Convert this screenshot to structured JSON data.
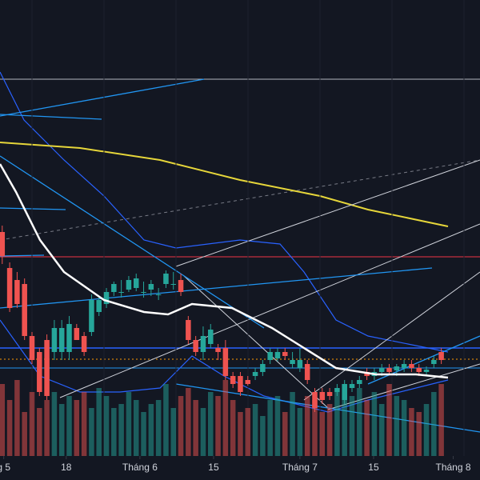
{
  "chart_data": {
    "type": "candlestick",
    "x": [
      0,
      1,
      2,
      3,
      4,
      5,
      6,
      7,
      8,
      9,
      10,
      11,
      12,
      13,
      14,
      15,
      16,
      17,
      18,
      19,
      20,
      21,
      22,
      23,
      24,
      25,
      26,
      27,
      28,
      29,
      30,
      31,
      32,
      33,
      34,
      35,
      36,
      37,
      38,
      39,
      40,
      41,
      42,
      43,
      44,
      45,
      46,
      47,
      48,
      49,
      50,
      51,
      52,
      53,
      54,
      55,
      56,
      57,
      58,
      59
    ],
    "open": [
      310,
      265,
      250,
      245,
      180,
      160,
      175,
      160,
      160,
      160,
      190,
      180,
      185,
      210,
      220,
      235,
      235,
      238,
      240,
      235,
      238,
      232,
      245,
      245,
      250,
      200,
      175,
      160,
      170,
      165,
      165,
      130,
      130,
      125,
      130,
      135,
      150,
      152,
      160,
      145,
      140,
      145,
      110,
      110,
      110,
      110,
      100,
      115,
      120,
      135,
      130,
      135,
      140,
      137,
      140,
      145,
      140,
      135,
      145,
      160
    ],
    "high": [
      318,
      272,
      260,
      252,
      185,
      165,
      182,
      200,
      200,
      205,
      195,
      185,
      232,
      230,
      240,
      248,
      250,
      255,
      258,
      248,
      250,
      240,
      262,
      260,
      258,
      205,
      180,
      192,
      195,
      170,
      175,
      135,
      135,
      130,
      140,
      150,
      165,
      165,
      165,
      160,
      165,
      150,
      115,
      115,
      115,
      120,
      125,
      125,
      130,
      140,
      140,
      145,
      145,
      145,
      150,
      150,
      145,
      142,
      155,
      165
    ],
    "low": [
      270,
      210,
      215,
      175,
      145,
      105,
      100,
      150,
      150,
      150,
      175,
      155,
      180,
      205,
      215,
      230,
      228,
      235,
      236,
      228,
      230,
      225,
      240,
      238,
      230,
      170,
      155,
      150,
      165,
      150,
      125,
      115,
      105,
      118,
      125,
      130,
      145,
      148,
      150,
      140,
      135,
      120,
      85,
      95,
      100,
      105,
      95,
      110,
      115,
      125,
      125,
      130,
      132,
      130,
      135,
      135,
      130,
      130,
      140,
      145
    ],
    "close": [
      280,
      215,
      220,
      180,
      150,
      110,
      105,
      190,
      190,
      195,
      175,
      160,
      225,
      225,
      235,
      245,
      235,
      250,
      252,
      235,
      245,
      232,
      258,
      245,
      235,
      175,
      160,
      180,
      188,
      160,
      130,
      120,
      110,
      120,
      135,
      145,
      160,
      160,
      155,
      150,
      150,
      125,
      90,
      100,
      105,
      115,
      120,
      120,
      125,
      130,
      135,
      140,
      135,
      142,
      145,
      140,
      135,
      138,
      150,
      150
    ],
    "volume": [
      90,
      70,
      95,
      55,
      80,
      60,
      70,
      80,
      65,
      75,
      70,
      80,
      60,
      85,
      75,
      60,
      65,
      80,
      70,
      55,
      65,
      70,
      90,
      60,
      75,
      85,
      70,
      60,
      80,
      75,
      95,
      70,
      55,
      60,
      65,
      50,
      70,
      75,
      55,
      80,
      60,
      75,
      70,
      55,
      65,
      80,
      90,
      75,
      85,
      70,
      80,
      65,
      90,
      75,
      70,
      60,
      55,
      65,
      80,
      90
    ],
    "xlim": [
      -0.3,
      64.2
    ],
    "ylim": [
      30,
      600
    ],
    "xticks": [
      {
        "value": 0.2,
        "label": "g 5"
      },
      {
        "value": 8.6,
        "label": "18"
      },
      {
        "value": 18.5,
        "label": "Tháng 6"
      },
      {
        "value": 28.4,
        "label": "15"
      },
      {
        "value": 40,
        "label": "Tháng 7"
      },
      {
        "value": 49.9,
        "label": "15"
      },
      {
        "value": 60.6,
        "label": "Tháng 8"
      }
    ],
    "up_color": "#26a69a",
    "down_color": "#ef5350"
  }
}
